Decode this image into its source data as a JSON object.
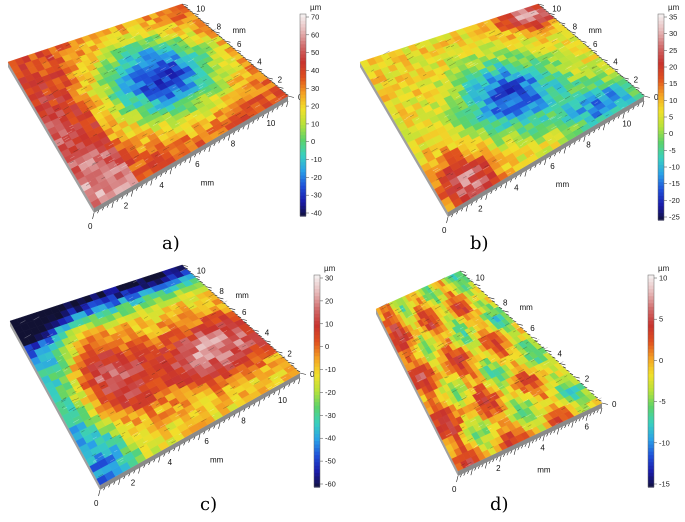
{
  "figure": {
    "panels": [
      {
        "id": "a",
        "caption": "a)",
        "colorbar": {
          "unit": "µm",
          "ticks": [
            "70",
            "60",
            "50",
            "40",
            "30",
            "20",
            "10",
            "0",
            "-10",
            "-20",
            "-30",
            "-40"
          ]
        },
        "axis_front": {
          "ticks": [
            "0",
            "2",
            "4",
            "6",
            "8",
            "10"
          ],
          "unit": "mm"
        },
        "axis_right": {
          "ticks": [
            "0",
            "2",
            "4",
            "6",
            "8",
            "10"
          ],
          "unit": "mm"
        }
      },
      {
        "id": "b",
        "caption": "b)",
        "colorbar": {
          "unit": "µm",
          "ticks": [
            "35",
            "30",
            "25",
            "20",
            "15",
            "10",
            "5",
            "0",
            "-5",
            "-10",
            "-15",
            "-20",
            "-25"
          ]
        },
        "axis_front": {
          "ticks": [
            "0",
            "2",
            "4",
            "6",
            "8",
            "10"
          ],
          "unit": "mm"
        },
        "axis_right": {
          "ticks": [
            "0",
            "2",
            "4",
            "6",
            "8",
            "10"
          ],
          "unit": "mm"
        }
      },
      {
        "id": "c",
        "caption": "c)",
        "colorbar": {
          "unit": "µm",
          "ticks": [
            "30",
            "20",
            "10",
            "0",
            "-10",
            "-20",
            "-30",
            "-40",
            "-50",
            "-60"
          ]
        },
        "axis_front": {
          "ticks": [
            "0",
            "2",
            "4",
            "6",
            "8",
            "10"
          ],
          "unit": "mm"
        },
        "axis_right": {
          "ticks": [
            "0",
            "2",
            "4",
            "6",
            "8",
            "10"
          ],
          "unit": "mm"
        }
      },
      {
        "id": "d",
        "caption": "d)",
        "colorbar": {
          "unit": "µm",
          "ticks": [
            "10",
            "5",
            "0",
            "-5",
            "-10",
            "-15"
          ]
        },
        "axis_front": {
          "ticks": [
            "0",
            "2",
            "4",
            "6"
          ],
          "unit": "mm"
        },
        "axis_right": {
          "ticks": [
            "0",
            "2",
            "4",
            "6",
            "8",
            "10"
          ],
          "unit": "mm"
        }
      }
    ]
  },
  "colormap": [
    "#111133",
    "#1a1aa8",
    "#1f4fd8",
    "#2aa0e8",
    "#38d0c0",
    "#5cd36a",
    "#b8e23a",
    "#f2e02a",
    "#f4a023",
    "#e0501e",
    "#c8332e",
    "#d06a6a",
    "#e6b8b8",
    "#f4eeee"
  ]
}
